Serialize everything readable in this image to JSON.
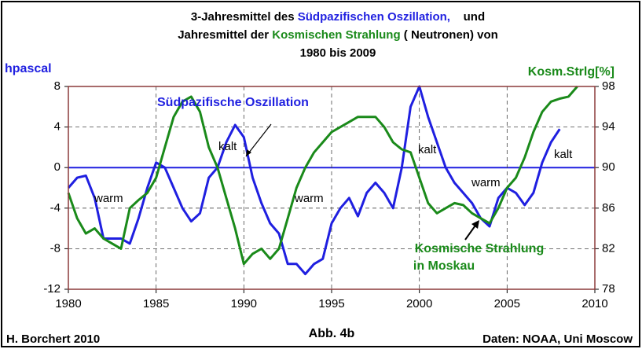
{
  "chart_data": {
    "type": "line",
    "title": [
      [
        {
          "text": "3-Jahresmittel des ",
          "color": "#000000"
        },
        {
          "text": "Südpazifischen Oszillation,",
          "color": "#1f1fe0"
        },
        {
          "text": "    und",
          "color": "#000000"
        }
      ],
      [
        {
          "text": "Jahresmittel der ",
          "color": "#000000"
        },
        {
          "text": "Kosmischen Strahlung",
          "color": "#1a8a1a"
        },
        {
          "text": " ( Neutronen) von",
          "color": "#000000"
        }
      ],
      [
        {
          "text": "1980 bis 2009",
          "color": "#000000"
        }
      ]
    ],
    "ylabel": "hpascal",
    "y2label": "Kosm.Strlg[%]",
    "annotations": {
      "soi_label": "Südpazifische Oszillation",
      "kalt": [
        "kalt",
        "kalt",
        "kalt"
      ],
      "warm": [
        "warm",
        "warm",
        "warm"
      ],
      "cosmic_label": [
        "Kosmische Strahlung",
        "in Moskau"
      ]
    },
    "footer": {
      "left": "H. Borchert 2010",
      "center": "Abb. 4b",
      "right": "Daten: NOAA, Uni Moscow"
    },
    "x": [
      1980,
      1980.5,
      1981,
      1981.5,
      1982,
      1982.5,
      1983,
      1983.5,
      1984,
      1984.5,
      1985,
      1985.5,
      1986,
      1986.5,
      1987,
      1987.5,
      1988,
      1988.5,
      1989,
      1989.5,
      1990,
      1990.5,
      1991,
      1991.5,
      1992,
      1992.5,
      1993,
      1993.5,
      1994,
      1994.5,
      1995,
      1995.5,
      1996,
      1996.5,
      1997,
      1997.5,
      1998,
      1998.5,
      1999,
      1999.5,
      2000,
      2000.5,
      2001,
      2001.5,
      2002,
      2002.5,
      2003,
      2003.5,
      2004,
      2004.5,
      2005,
      2005.5,
      2006,
      2006.5,
      2007,
      2007.5,
      2008,
      2008.5,
      2009
    ],
    "series": [
      {
        "name": "Südpazifische Oszillation",
        "color": "#1f1fe0",
        "axis": "y",
        "values": [
          -2,
          -1,
          -0.8,
          -3,
          -7,
          -7,
          -7,
          -7.5,
          -5,
          -2,
          0.5,
          0,
          -2,
          -4,
          -5.3,
          -4.5,
          -1,
          0,
          2.5,
          4.2,
          3,
          -1,
          -3.5,
          -5.5,
          -6.5,
          -9.5,
          -9.5,
          -10.5,
          -9.5,
          -9,
          -5.5,
          -4,
          -3,
          -4.8,
          -2.5,
          -1.5,
          -2.5,
          -4,
          0,
          6,
          8,
          5,
          2.5,
          0,
          -1.5,
          -2.5,
          -3.5,
          -5,
          -5.8,
          -3,
          -2,
          -2.5,
          -3.7,
          -2.5,
          0.5,
          2.5,
          3.8,
          null,
          null
        ]
      },
      {
        "name": "Kosmische Strahlung",
        "color": "#1a8a1a",
        "axis": "y2",
        "values": [
          87.5,
          85,
          83.5,
          84,
          83,
          82.5,
          82,
          86,
          86.8,
          87.5,
          89,
          92,
          95,
          96.5,
          97,
          95.5,
          92,
          90,
          87,
          84,
          80.5,
          81.5,
          82,
          81,
          82,
          85,
          88,
          90,
          91.5,
          92.5,
          93.5,
          94,
          94.5,
          95,
          95,
          95,
          94,
          92.5,
          91.8,
          91.5,
          89,
          86.5,
          85.5,
          86,
          86.5,
          86.3,
          85.5,
          85,
          84.5,
          86,
          88,
          89,
          91,
          93.5,
          95.5,
          96.5,
          96.8,
          97,
          98
        ]
      }
    ],
    "xlim": [
      1980,
      2010
    ],
    "xticks": [
      1980,
      1985,
      1990,
      1995,
      2000,
      2005,
      2010
    ],
    "ylim": [
      -12,
      8
    ],
    "yticks": [
      -12,
      -8,
      -4,
      0,
      4,
      8
    ],
    "y2lim": [
      78,
      98
    ],
    "y2ticks": [
      78,
      82,
      86,
      90,
      94,
      98
    ],
    "grid": true
  }
}
